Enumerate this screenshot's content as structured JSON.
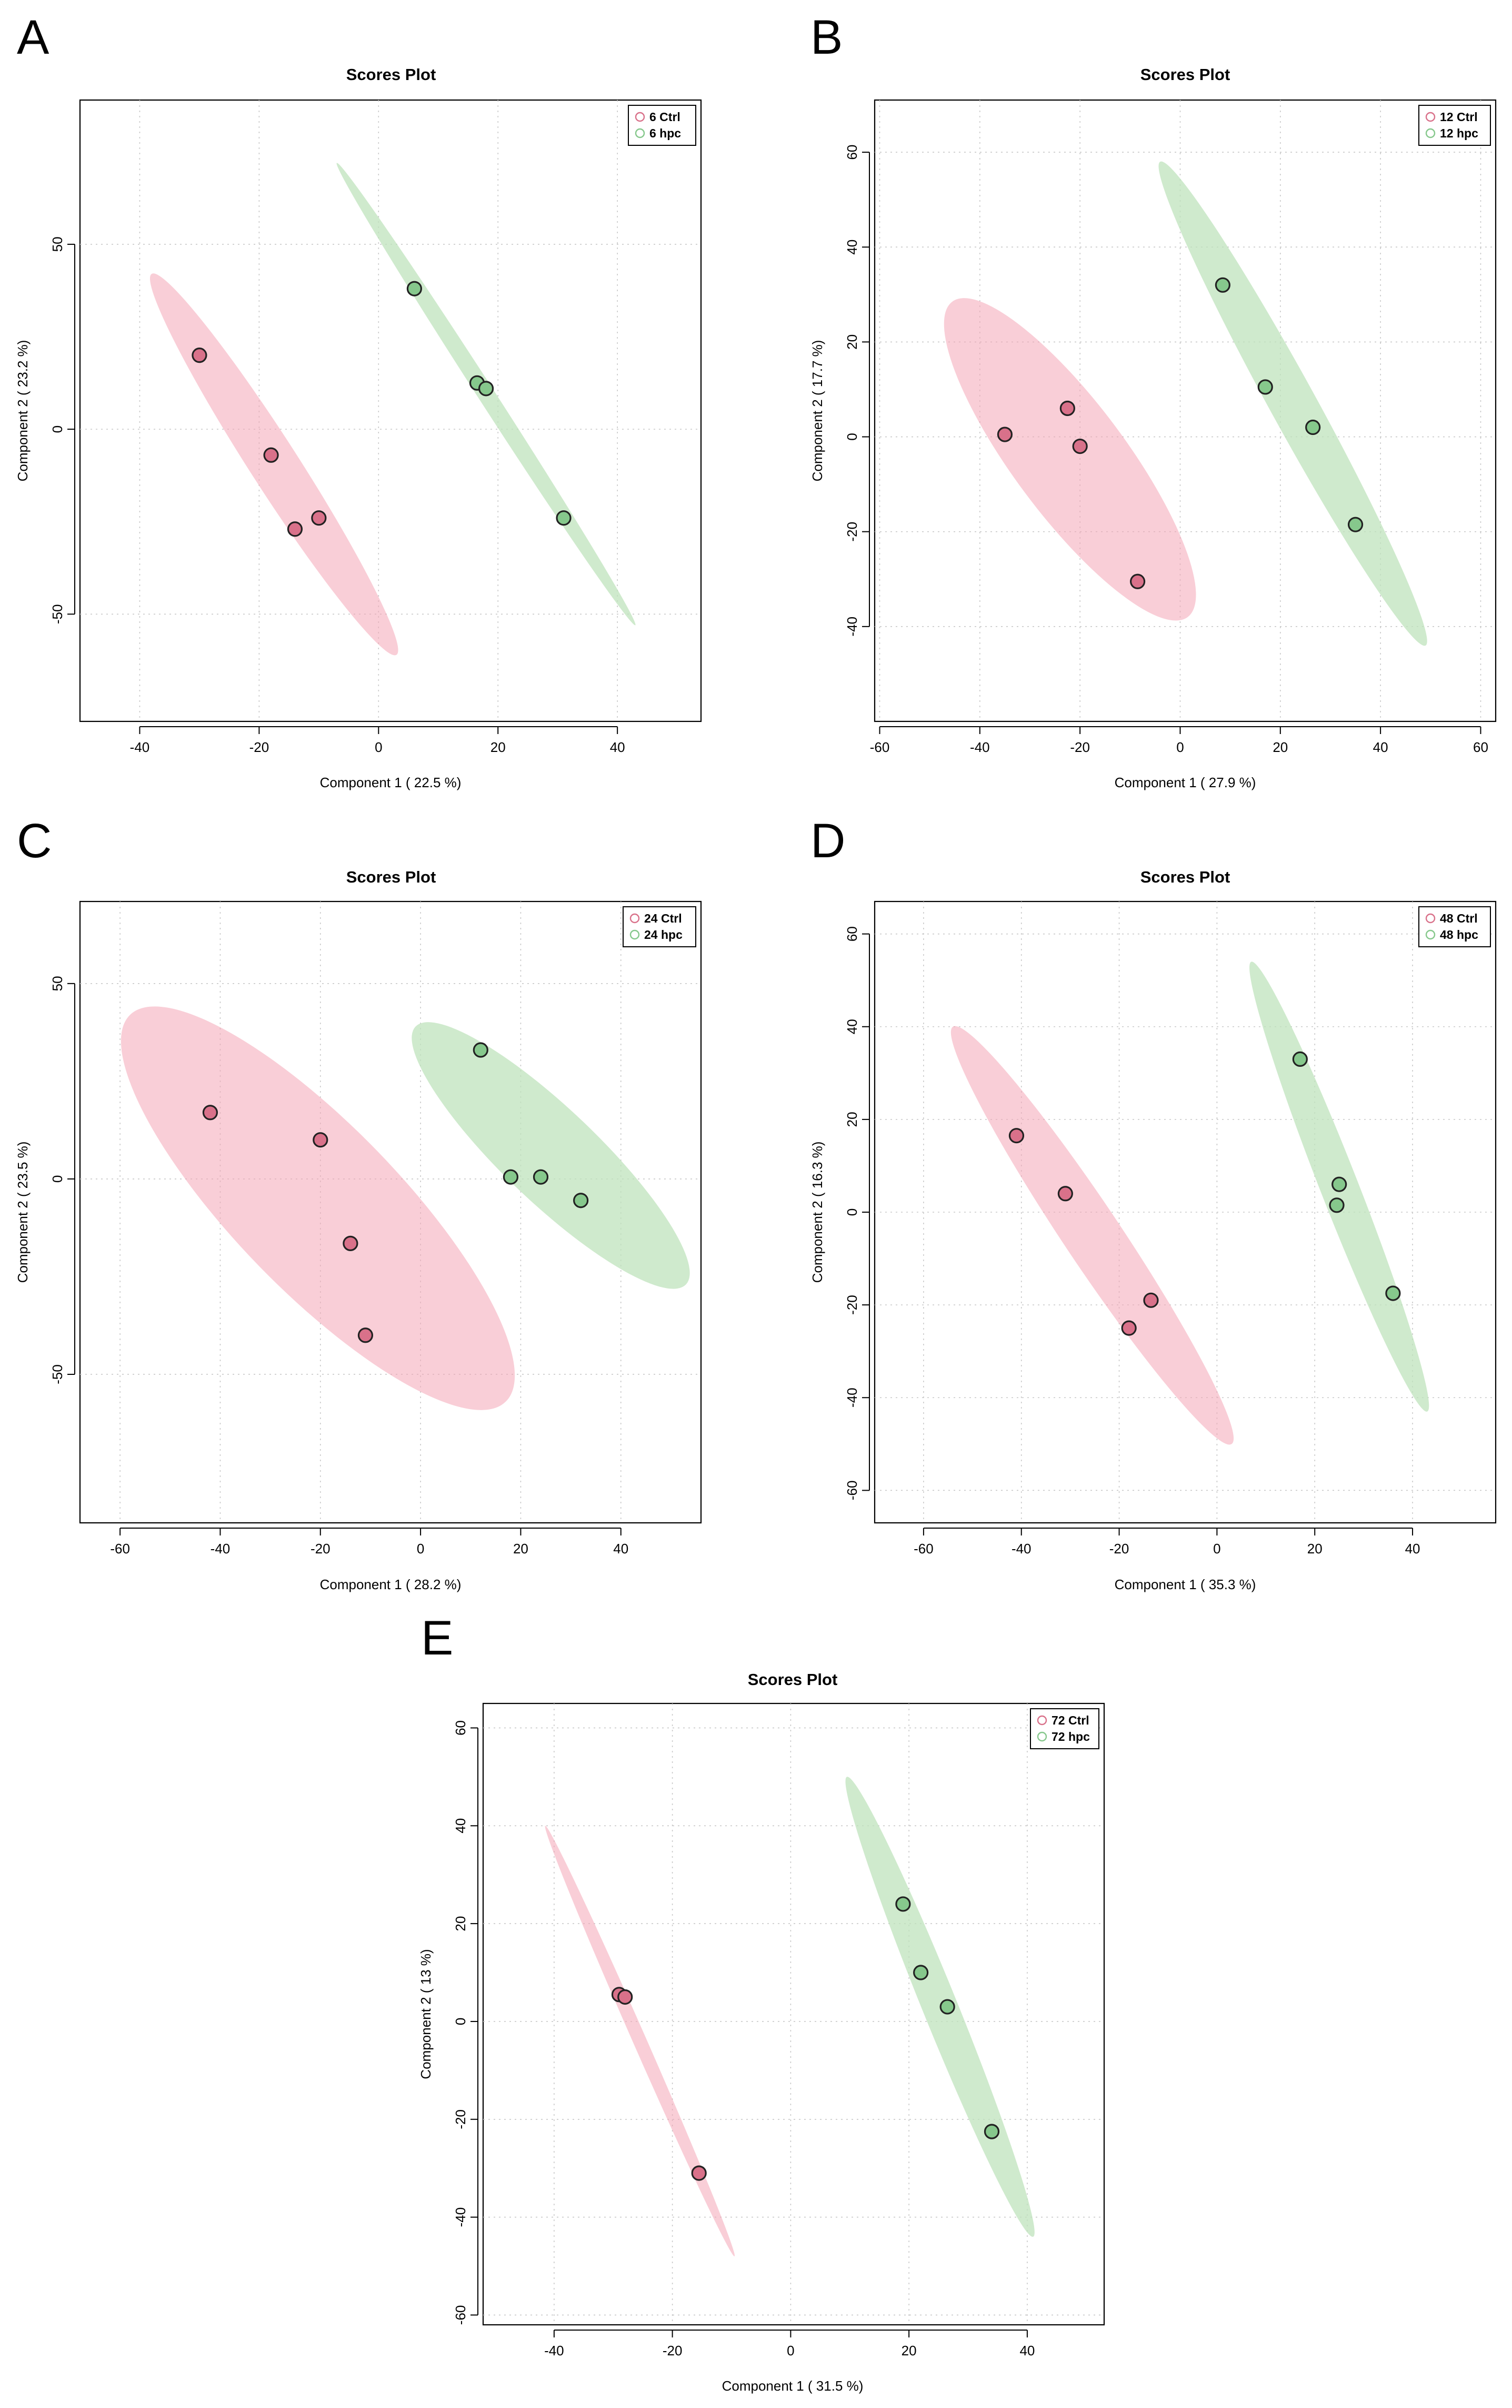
{
  "colors": {
    "ctrl_point": "#d9718a",
    "ctrl_ellipse": "#f4a6b7",
    "hpc_point": "#86c88c",
    "hpc_ellipse": "#bfe3bc"
  },
  "chart_data": [
    {
      "panel": "A",
      "type": "scatter",
      "title": "Scores Plot",
      "xlabel": "Component 1 ( 22.5 %)",
      "ylabel": "Component 2 ( 23.2 %)",
      "xlim": [
        -50,
        54
      ],
      "ylim": [
        -79,
        89
      ],
      "xticks": [
        -40,
        -20,
        0,
        20,
        40
      ],
      "yticks": [
        -50,
        0,
        50
      ],
      "legend": "top-right",
      "series": [
        {
          "name": "6 Ctrl",
          "group": "ctrl",
          "points": [
            [
              -30,
              20
            ],
            [
              -18,
              -7
            ],
            [
              -14,
              -27
            ],
            [
              -10,
              -24
            ]
          ],
          "ellipse_end_a": [
            -38,
            42
          ],
          "ellipse_end_b": [
            3,
            -61
          ],
          "ellipse_width": 10
        },
        {
          "name": "6 hpc",
          "group": "hpc",
          "points": [
            [
              6,
              38
            ],
            [
              16.5,
              12.5
            ],
            [
              18,
              11
            ],
            [
              31,
              -24
            ]
          ],
          "ellipse_end_a": [
            -7,
            72
          ],
          "ellipse_end_b": [
            43,
            -53
          ],
          "ellipse_width": 3.5
        }
      ]
    },
    {
      "panel": "B",
      "type": "scatter",
      "title": "Scores Plot",
      "xlabel": "Component 1 ( 27.9 %)",
      "ylabel": "Component 2 ( 17.7 %)",
      "xlim": [
        -61,
        63
      ],
      "ylim": [
        -60,
        71
      ],
      "xticks": [
        -60,
        -40,
        -20,
        0,
        20,
        40,
        60
      ],
      "yticks": [
        -40,
        -20,
        0,
        20,
        40,
        60
      ],
      "legend": "top-right",
      "series": [
        {
          "name": "12 Ctrl",
          "group": "ctrl",
          "points": [
            [
              -35,
              0.5
            ],
            [
              -22.5,
              6
            ],
            [
              -20,
              -2
            ],
            [
              -8.5,
              -30.5
            ]
          ],
          "ellipse_end_a": [
            -45.5,
            28.5
          ],
          "ellipse_end_b": [
            1.5,
            -38
          ],
          "ellipse_width": 23
        },
        {
          "name": "12 hpc",
          "group": "hpc",
          "points": [
            [
              8.5,
              32
            ],
            [
              17,
              10.5
            ],
            [
              26.5,
              2
            ],
            [
              35,
              -18.5
            ]
          ],
          "ellipse_end_a": [
            -4,
            58
          ],
          "ellipse_end_b": [
            49,
            -44
          ],
          "ellipse_width": 9.5
        }
      ]
    },
    {
      "panel": "C",
      "type": "scatter",
      "title": "Scores Plot",
      "xlabel": "Component 1 ( 28.2 %)",
      "ylabel": "Component 2 ( 23.5 %)",
      "xlim": [
        -68,
        56
      ],
      "ylim": [
        -88,
        71
      ],
      "xticks": [
        -60,
        -40,
        -20,
        0,
        20,
        40
      ],
      "yticks": [
        -50,
        0,
        50
      ],
      "legend": "top-right",
      "series": [
        {
          "name": "24 Ctrl",
          "group": "ctrl",
          "points": [
            [
              -42,
              17
            ],
            [
              -20,
              10
            ],
            [
              -14,
              -16.5
            ],
            [
              -11,
              -40
            ]
          ],
          "ellipse_end_a": [
            -58,
            42
          ],
          "ellipse_end_b": [
            17,
            -57
          ],
          "ellipse_width": 37
        },
        {
          "name": "24 hpc",
          "group": "hpc",
          "points": [
            [
              12,
              33
            ],
            [
              18,
              0.5
            ],
            [
              24,
              0.5
            ],
            [
              32,
              -5.5
            ]
          ],
          "ellipse_end_a": [
            -1,
            39
          ],
          "ellipse_end_b": [
            53,
            -27
          ],
          "ellipse_width": 21
        }
      ]
    },
    {
      "panel": "D",
      "type": "scatter",
      "title": "Scores Plot",
      "xlabel": "Component 1 ( 35.3 %)",
      "ylabel": "Component 2 ( 16.3 %)",
      "xlim": [
        -70,
        57
      ],
      "ylim": [
        -67,
        67
      ],
      "xticks": [
        -60,
        -40,
        -20,
        0,
        20,
        40
      ],
      "yticks": [
        -60,
        -40,
        -20,
        0,
        20,
        40,
        60
      ],
      "legend": "top-right",
      "series": [
        {
          "name": "48 Ctrl",
          "group": "ctrl",
          "points": [
            [
              -41,
              16.5
            ],
            [
              -31,
              4
            ],
            [
              -13.5,
              -19
            ],
            [
              -18,
              -25
            ]
          ],
          "ellipse_end_a": [
            -54,
            40
          ],
          "ellipse_end_b": [
            3,
            -50
          ],
          "ellipse_width": 12
        },
        {
          "name": "48 hpc",
          "group": "hpc",
          "points": [
            [
              17,
              33
            ],
            [
              25,
              6
            ],
            [
              24.5,
              1.5
            ],
            [
              36,
              -17.5
            ]
          ],
          "ellipse_end_a": [
            7,
            54
          ],
          "ellipse_end_b": [
            43,
            -43
          ],
          "ellipse_width": 8
        }
      ]
    },
    {
      "panel": "E",
      "type": "scatter",
      "title": "Scores Plot",
      "xlabel": "Component 1 ( 31.5 %)",
      "ylabel": "Component 2 ( 13 %)",
      "xlim": [
        -52,
        53
      ],
      "ylim": [
        -62,
        65
      ],
      "xticks": [
        -40,
        -20,
        0,
        20,
        40
      ],
      "yticks": [
        -60,
        -40,
        -20,
        0,
        20,
        40,
        60
      ],
      "legend": "top-right",
      "series": [
        {
          "name": "72 Ctrl",
          "group": "ctrl",
          "points": [
            [
              -29,
              5.5
            ],
            [
              -28,
              5
            ],
            [
              -15.5,
              -31
            ]
          ],
          "ellipse_end_a": [
            -41.5,
            40
          ],
          "ellipse_end_b": [
            -9.5,
            -48
          ],
          "ellipse_width": 2.5
        },
        {
          "name": "72 hpc",
          "group": "hpc",
          "points": [
            [
              19,
              24
            ],
            [
              22,
              10
            ],
            [
              26.5,
              3
            ],
            [
              34,
              -22.5
            ]
          ],
          "ellipse_end_a": [
            9.5,
            50
          ],
          "ellipse_end_b": [
            41,
            -44
          ],
          "ellipse_width": 6.5
        }
      ]
    }
  ]
}
